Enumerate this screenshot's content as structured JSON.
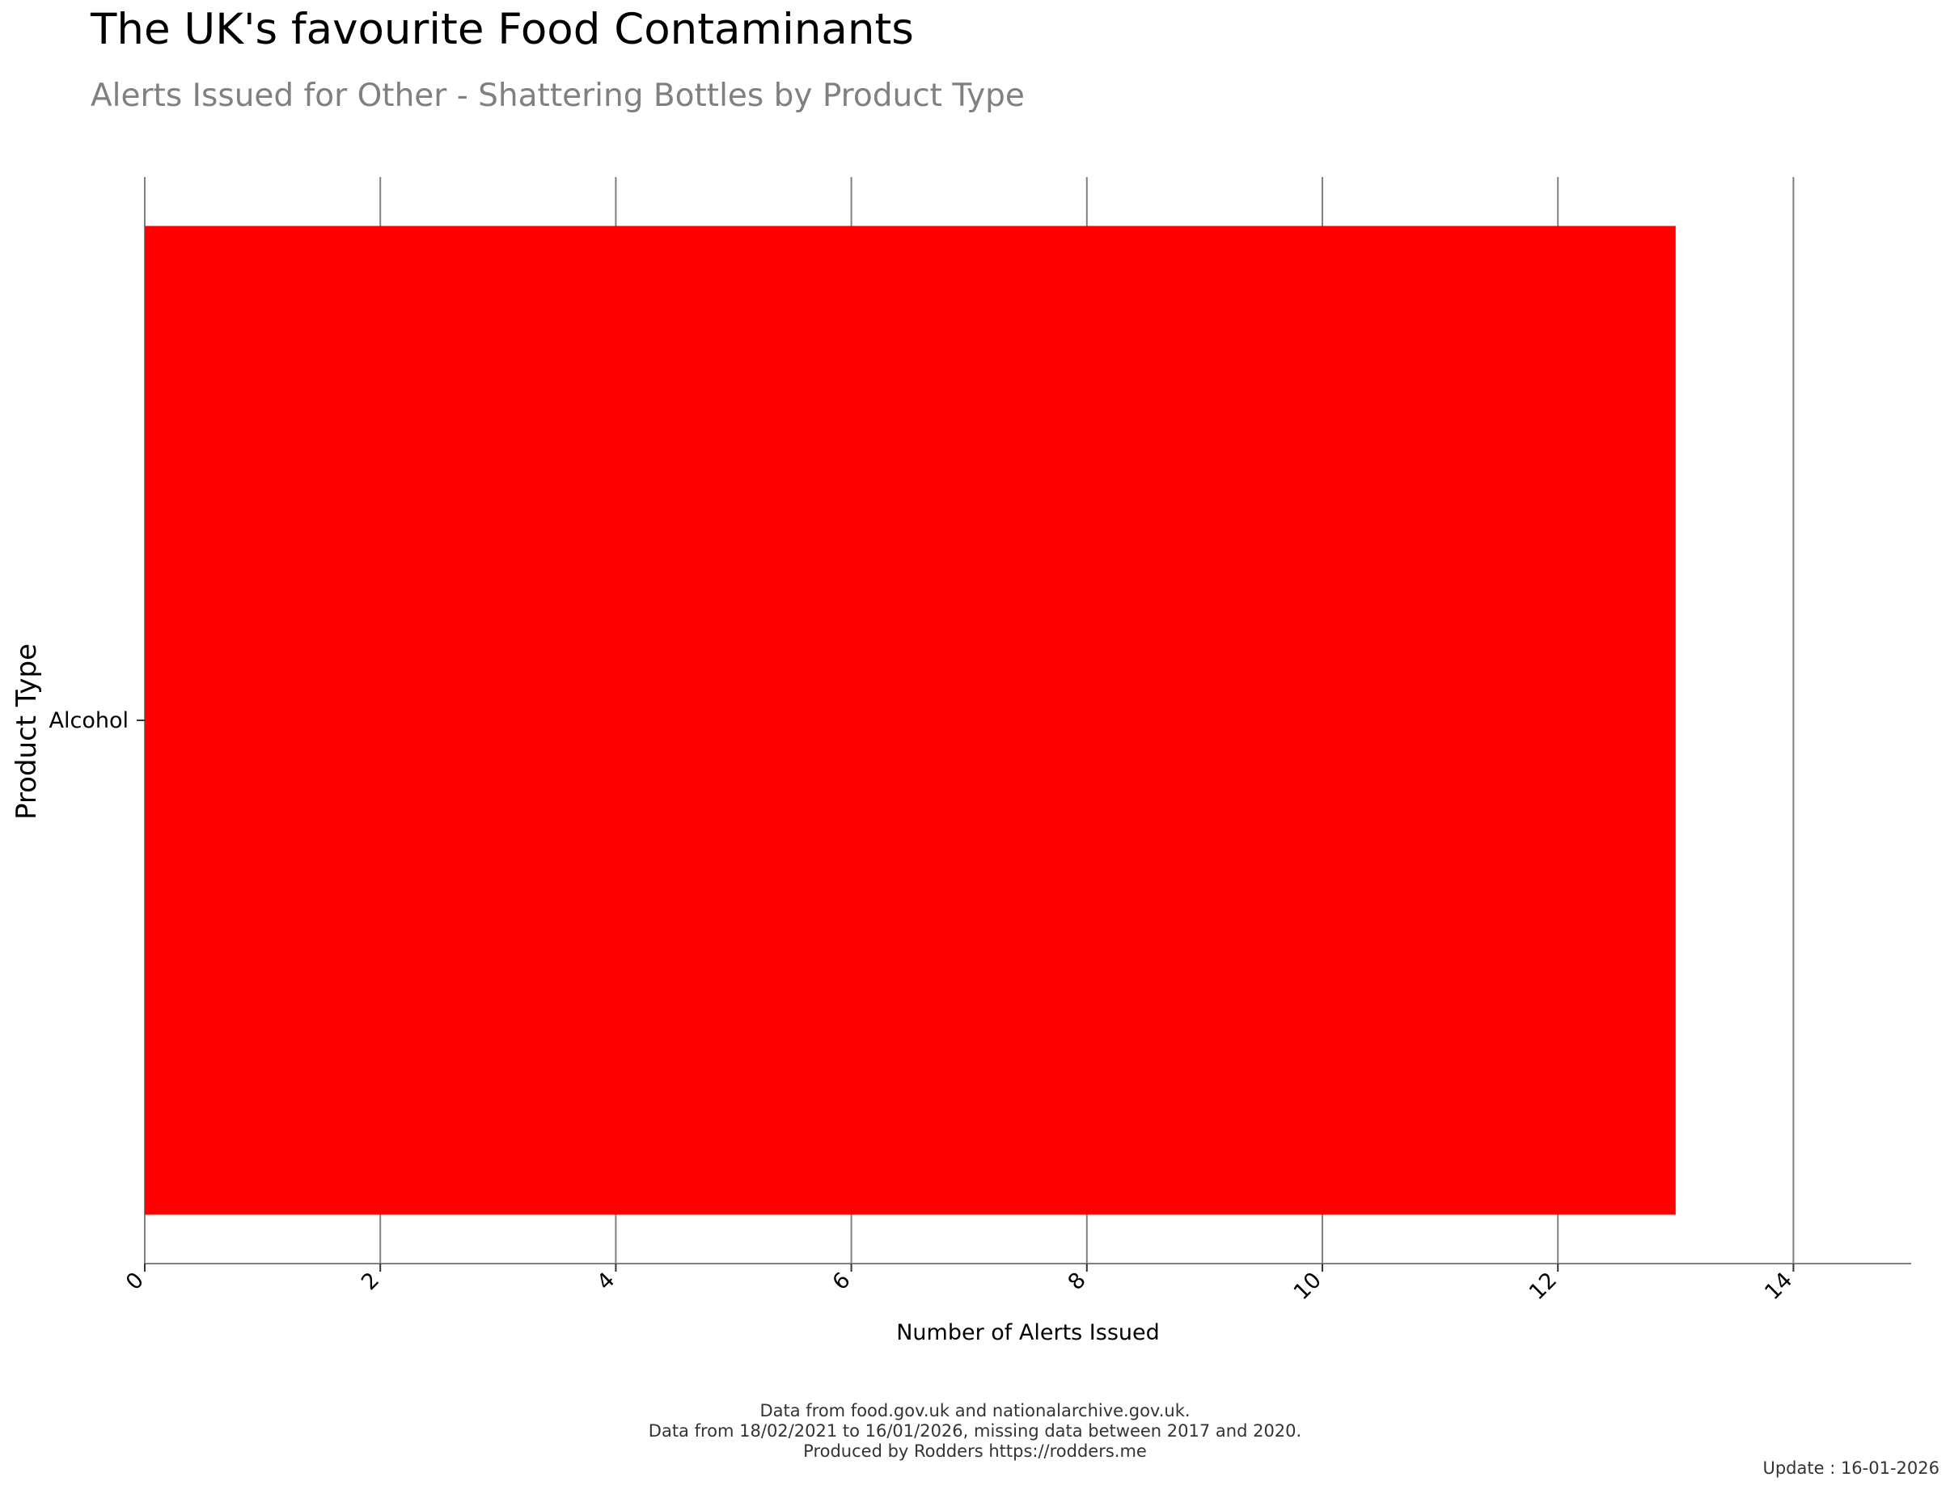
{
  "title": "The UK's favourite Food Contaminants",
  "subtitle": "Alerts Issued for Other - Shattering Bottles by Product Type",
  "caption": {
    "line1": "Data from food.gov.uk and nationalarchive.gov.uk.",
    "line2": "Data from 18/02/2021 to 16/01/2026, missing data between 2017 and 2020.",
    "line3": "Produced by Rodders https://rodders.me"
  },
  "update_label": "Update : 16-01-2026",
  "chart_data": {
    "type": "bar",
    "orientation": "horizontal",
    "categories": [
      "Alcohol"
    ],
    "values": [
      13
    ],
    "xlabel": "Number of Alerts Issued",
    "ylabel": "Product Type",
    "xlim": [
      0,
      15
    ],
    "x_ticks": [
      0,
      2,
      4,
      6,
      8,
      10,
      12,
      14
    ],
    "grid": "vertical",
    "bar_color": "#ff0000",
    "grid_color": "#808080"
  }
}
